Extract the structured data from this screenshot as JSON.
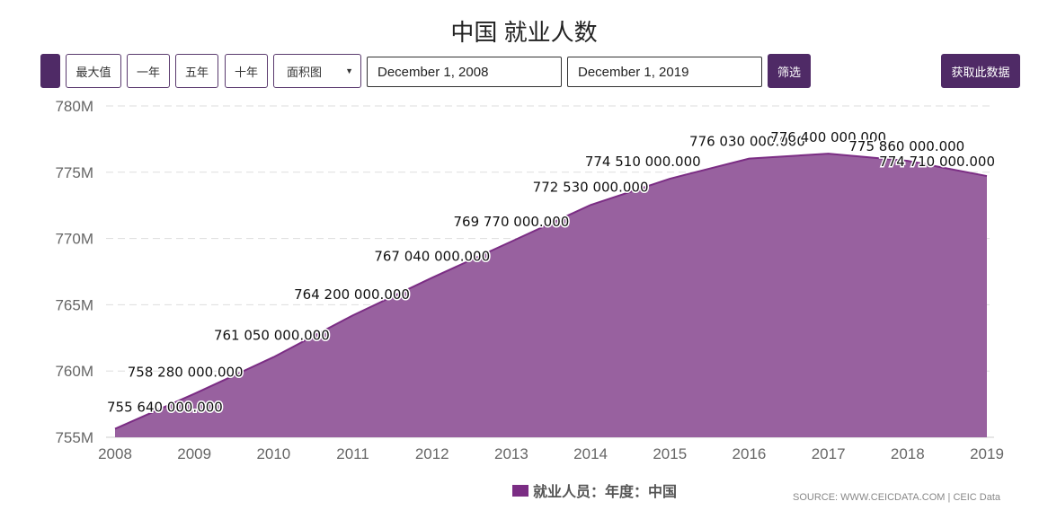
{
  "title": "中国 就业人数",
  "toolbar": {
    "max": "最大值",
    "one_year": "一年",
    "five_year": "五年",
    "ten_year": "十年",
    "chart_type": "面积图",
    "start_date": "December 1, 2008",
    "end_date": "December 1, 2019",
    "filter": "筛选",
    "get_data": "获取此数据"
  },
  "colors": {
    "accent": "#4f2a66",
    "area_fill": "#98619f",
    "area_line": "#7b2d84"
  },
  "chart_data": {
    "type": "area",
    "title": "中国 就业人数",
    "x": [
      "2008",
      "2009",
      "2010",
      "2011",
      "2012",
      "2013",
      "2014",
      "2015",
      "2016",
      "2017",
      "2018",
      "2019"
    ],
    "series": [
      {
        "name": "就业人员：年度：中国",
        "values": [
          755640000,
          758280000,
          761050000,
          764200000,
          767040000,
          769770000,
          772530000,
          774510000,
          776030000,
          776400000,
          775860000,
          774710000
        ]
      }
    ],
    "data_labels": [
      "755 640 000.000",
      "758 280 000.000",
      "761 050 000.000",
      "764 200 000.000",
      "767 040 000.000",
      "769 770 000.000",
      "772 530 000.000",
      "774 510 000.000",
      "776 030 000.000",
      "776 400 000.000",
      "775 860 000.000",
      "774 710 000.000"
    ],
    "yticks": [
      "755M",
      "760M",
      "765M",
      "770M",
      "775M",
      "780M"
    ],
    "ylim": [
      755000000,
      780000000
    ],
    "grid": true,
    "legend": "bottom"
  },
  "legend_label": "就业人员：年度：中国",
  "source": "SOURCE: WWW.CEICDATA.COM | CEIC Data"
}
